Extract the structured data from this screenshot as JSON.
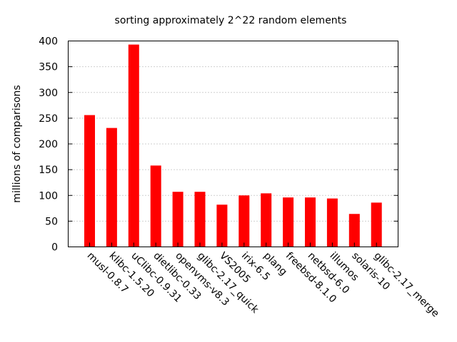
{
  "chart_data": {
    "type": "bar",
    "title": "sorting approximately 2^22 random elements",
    "xlabel": "",
    "ylabel": "millions of  comparisons",
    "ylim": [
      0,
      400
    ],
    "yticks": [
      0,
      50,
      100,
      150,
      200,
      250,
      300,
      350,
      400
    ],
    "grid": "y-dotted",
    "bar_color": "#ff0000",
    "categories": [
      "musl-0.8.7",
      "klibc-1.5.20",
      "uClibc-0.9.31",
      "dietlibc-0.33",
      "openvms-v8.3",
      "glibc-2.17_quick",
      "VS2005",
      "irix-6.5",
      "plang",
      "freebsd-8.1.0",
      "netbsd-6.0",
      "illumos",
      "solaris-10",
      "glibc-2.17_merge"
    ],
    "values": [
      256,
      231,
      393,
      158,
      107,
      107,
      82,
      100,
      104,
      96,
      96,
      94,
      64,
      86
    ]
  }
}
